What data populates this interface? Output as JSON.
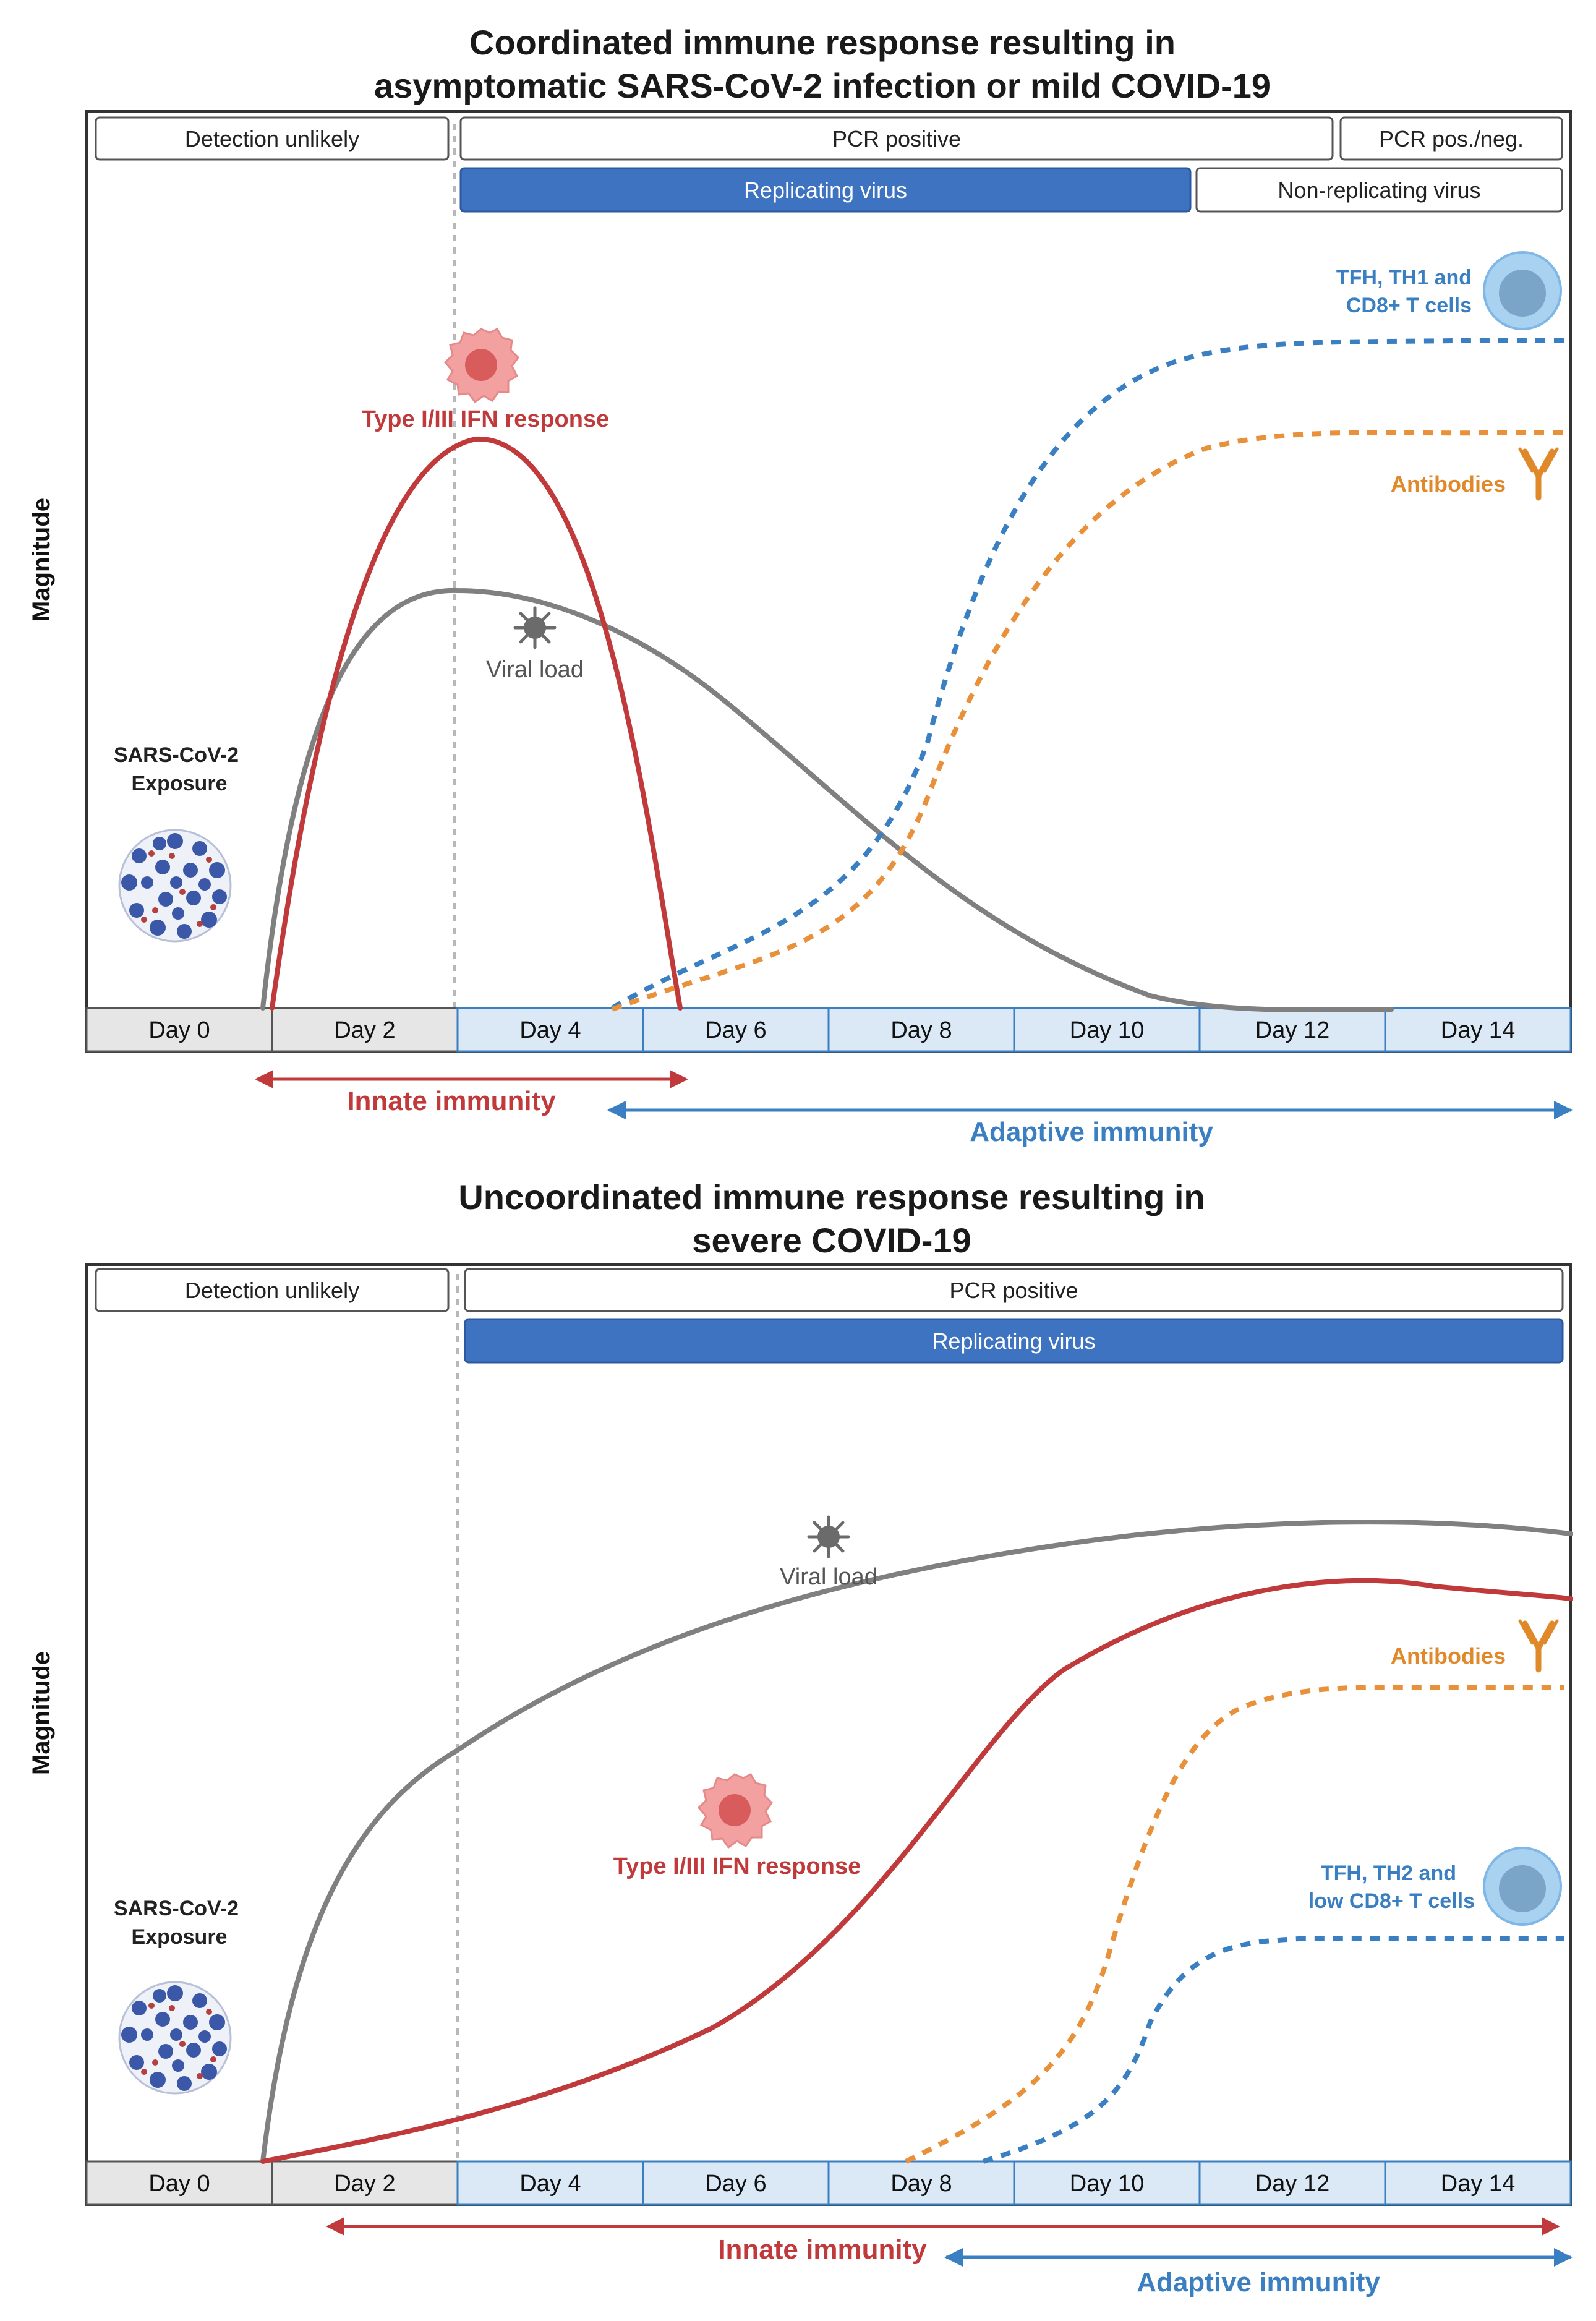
{
  "colors": {
    "red": "#c0393b",
    "gray": "#808080",
    "blue": "#3a7fc1",
    "orange": "#e8903a",
    "box_blue": "#3d73c0",
    "day_gray": "#e6e6e6",
    "day_blue": "#dbe9f7"
  },
  "days": [
    "Day 0",
    "Day 2",
    "Day 4",
    "Day 6",
    "Day 8",
    "Day 10",
    "Day 12",
    "Day 14"
  ],
  "panel1": {
    "title_line1": "Coordinated immune response resulting in",
    "title_line2": "asymptomatic SARS-CoV-2 infection or mild COVID-19",
    "y_axis_label": "Magnitude",
    "status_boxes": {
      "detection": "Detection unlikely",
      "pcr": "PCR positive",
      "pcr_pos_neg": "PCR pos./neg.",
      "replicating": "Replicating virus",
      "non_replicating": "Non-replicating virus"
    },
    "exposure_line1": "SARS-CoV-2",
    "exposure_line2": "Exposure",
    "ifn_label": "Type I/III IFN response",
    "viral_label": "Viral load",
    "antibodies_label": "Antibodies",
    "tcells_line1": "TFH, TH1 and",
    "tcells_line2": "CD8+ T cells",
    "innate_label": "Innate immunity",
    "adaptive_label": "Adaptive immunity",
    "icons": [
      "sars-cov-2-virus-icon",
      "ifn-cell-icon",
      "viral-particle-icon",
      "antibody-icon",
      "t-cell-icon"
    ]
  },
  "panel2": {
    "title_line1": "Uncoordinated immune response resulting in",
    "title_line2": "severe COVID-19",
    "y_axis_label": "Magnitude",
    "status_boxes": {
      "detection": "Detection unlikely",
      "pcr": "PCR positive",
      "replicating": "Replicating virus"
    },
    "exposure_line1": "SARS-CoV-2",
    "exposure_line2": "Exposure",
    "ifn_label": "Type I/III IFN response",
    "viral_label": "Viral load",
    "antibodies_label": "Antibodies",
    "tcells_line1": "TFH, TH2 and",
    "tcells_line2": "low CD8+ T cells",
    "innate_label": "Innate immunity",
    "adaptive_label": "Adaptive immunity",
    "icons": [
      "sars-cov-2-virus-icon",
      "ifn-cell-icon",
      "viral-particle-icon",
      "antibody-icon",
      "t-cell-icon"
    ]
  }
}
